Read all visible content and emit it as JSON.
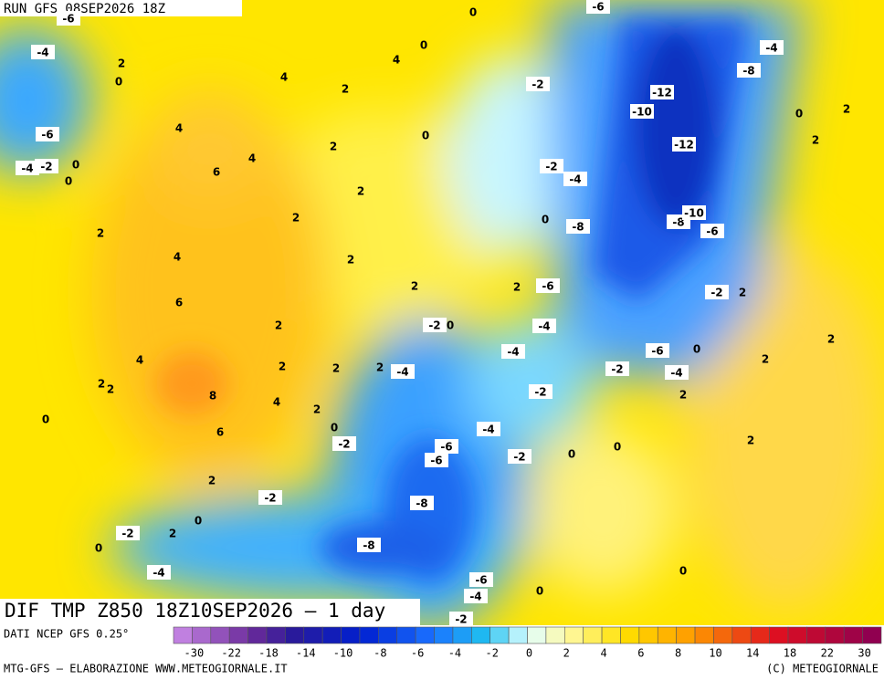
{
  "header": {
    "run": "RUN GFS 08SEP2026 18Z"
  },
  "map": {
    "labels": [
      -6,
      -4,
      2,
      0,
      -6,
      -4,
      -2,
      0,
      0,
      4,
      4,
      2,
      4,
      4,
      6,
      2,
      0,
      0,
      0,
      2,
      2,
      2,
      4,
      2,
      6,
      2,
      2,
      4,
      2,
      2,
      2,
      2,
      2,
      8,
      4,
      2,
      0,
      6,
      0,
      2,
      0,
      2,
      0,
      -2,
      -2,
      -2,
      -4,
      -2,
      0,
      -2,
      -6,
      -12,
      -10,
      -12,
      -8,
      -4,
      0,
      2,
      2,
      -2,
      -4,
      0,
      -8,
      -8,
      -10,
      -6,
      -6,
      2,
      -2,
      2,
      -4,
      -4,
      -6,
      0,
      2,
      2,
      -2,
      -4,
      2,
      -2,
      -4,
      -6,
      -6,
      -2,
      0,
      0,
      2,
      -8,
      -8,
      -4,
      -6,
      -4,
      0,
      0,
      -2
    ]
  },
  "footer": {
    "title": "DIF TMP Z850 18Z10SEP2026 – 1 day",
    "source": "DATI NCEP GFS 0.25°",
    "credit": "MTG-GFS – ELABORAZIONE WWW.METEOGIORNALE.IT",
    "copyright": "(C) METEOGIORNALE",
    "scale": [
      -30,
      -22,
      -18,
      -14,
      -10,
      -8,
      -6,
      -4,
      -2,
      0,
      2,
      4,
      6,
      8,
      10,
      14,
      18,
      22,
      30
    ]
  }
}
